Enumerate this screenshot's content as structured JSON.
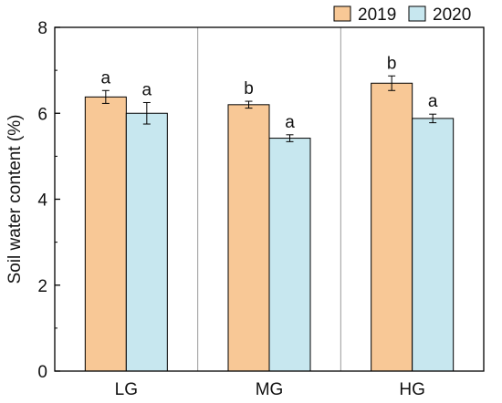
{
  "chart_data": {
    "type": "bar",
    "title": "",
    "xlabel": "",
    "ylabel": "Soil water content (%)",
    "ylim": [
      0,
      8
    ],
    "yticks": [
      0,
      2,
      4,
      6,
      8
    ],
    "categories": [
      "LG",
      "MG",
      "HG"
    ],
    "series": [
      {
        "name": "2019",
        "color": "#f8c896",
        "values": [
          6.38,
          6.2,
          6.7
        ],
        "errors": [
          0.15,
          0.08,
          0.17
        ],
        "labels": [
          "a",
          "b",
          "b"
        ]
      },
      {
        "name": "2020",
        "color": "#c7e7ef",
        "values": [
          6.0,
          5.42,
          5.88
        ],
        "errors": [
          0.25,
          0.08,
          0.1
        ],
        "labels": [
          "a",
          "a",
          "a"
        ]
      }
    ],
    "grid": false,
    "category_dividers": true,
    "legend": "top-right"
  }
}
